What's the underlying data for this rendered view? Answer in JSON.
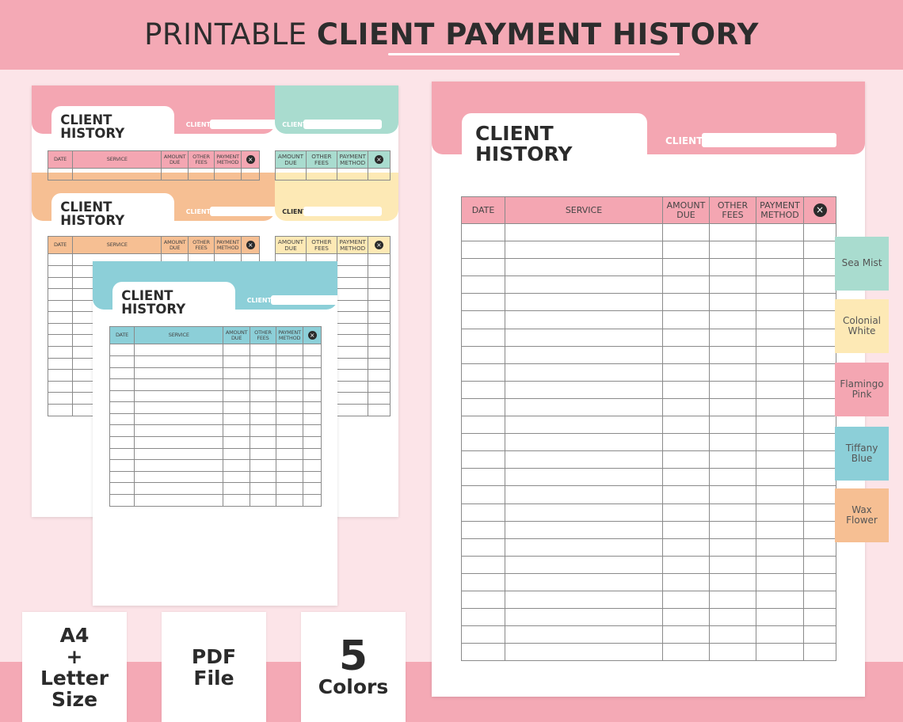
{
  "header": {
    "title_light": "PRINTABLE",
    "title_bold": "CLIENT PAYMENT HISTORY"
  },
  "sheet": {
    "title_line1": "CLIENT",
    "title_line2": "HISTORY",
    "client_label": "CLIENT",
    "columns": [
      "DATE",
      "SERVICE",
      "AMOUNT DUE",
      "OTHER FEES",
      "PAYMENT METHOD"
    ],
    "close_icon": "×"
  },
  "colors": {
    "background": "#fce4e8",
    "band": "#f4a9b5",
    "sea_mist": "#a9dccf",
    "colonial_white": "#fde9b5",
    "flamingo_pink": "#f4a6b2",
    "tiffany_blue": "#8ccfd8",
    "wax_flower": "#f6bf93"
  },
  "swatches": [
    {
      "label": "Sea Mist",
      "color": "#a9dccf"
    },
    {
      "label": "Colonial White",
      "color": "#fde9b5"
    },
    {
      "label": "Flamingo Pink",
      "color": "#f4a6b2"
    },
    {
      "label": "Tiffany Blue",
      "color": "#8ccfd8"
    },
    {
      "label": "Wax Flower",
      "color": "#f6bf93"
    }
  ],
  "badges": [
    {
      "lines": [
        "A4",
        "+",
        "Letter",
        "Size"
      ]
    },
    {
      "lines": [
        "PDF",
        "File"
      ]
    },
    {
      "big": "5",
      "lines": [
        "Colors"
      ]
    }
  ]
}
